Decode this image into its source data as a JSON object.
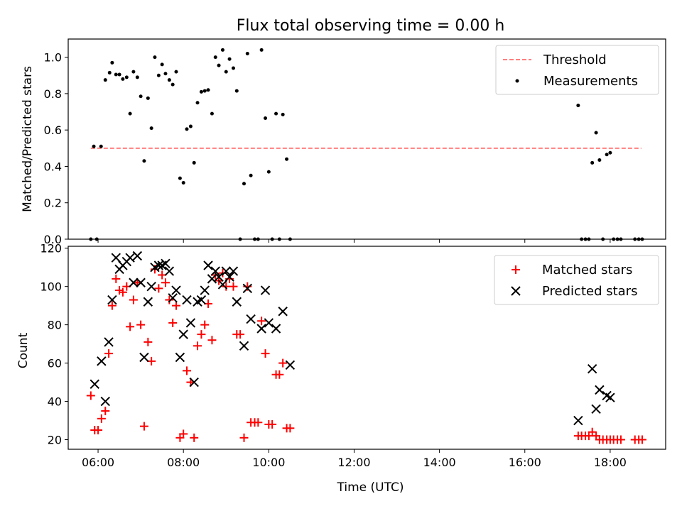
{
  "figure_title": "Flux total observing time = 0.00 h",
  "chart_data": [
    {
      "type": "scatter",
      "panel": "top",
      "title": "Flux total observing time = 0.00 h",
      "xlabel": "",
      "ylabel": "Matched/Predicted stars",
      "xlim": [
        5.3,
        19.3
      ],
      "ylim": [
        0.0,
        1.1
      ],
      "yticks": [
        0.0,
        0.2,
        0.4,
        0.6,
        0.8,
        1.0
      ],
      "ytick_labels": [
        "0.0",
        "0.2",
        "0.4",
        "0.6",
        "0.8",
        "1.0"
      ],
      "grid": false,
      "legend_placement": "top-right",
      "threshold": {
        "name": "Threshold",
        "value": 0.5,
        "x_range": [
          5.83,
          18.73
        ],
        "color": "#ff7f7f",
        "style": "dashed"
      },
      "series": [
        {
          "name": "Measurements",
          "color": "#000000",
          "marker": "dot",
          "points": [
            [
              5.83,
              0.0
            ],
            [
              5.9,
              0.51
            ],
            [
              5.97,
              0.0
            ],
            [
              6.07,
              0.51
            ],
            [
              6.17,
              0.875
            ],
            [
              6.27,
              0.915
            ],
            [
              6.33,
              0.97
            ],
            [
              6.42,
              0.905
            ],
            [
              6.5,
              0.905
            ],
            [
              6.58,
              0.88
            ],
            [
              6.67,
              0.89
            ],
            [
              6.75,
              0.69
            ],
            [
              6.83,
              0.92
            ],
            [
              6.92,
              0.89
            ],
            [
              7.0,
              0.785
            ],
            [
              7.08,
              0.43
            ],
            [
              7.17,
              0.775
            ],
            [
              7.25,
              0.61
            ],
            [
              7.33,
              1.0
            ],
            [
              7.42,
              0.9
            ],
            [
              7.5,
              0.96
            ],
            [
              7.58,
              0.91
            ],
            [
              7.67,
              0.875
            ],
            [
              7.75,
              0.85
            ],
            [
              7.83,
              0.92
            ],
            [
              7.92,
              0.335
            ],
            [
              8.0,
              0.31
            ],
            [
              8.08,
              0.605
            ],
            [
              8.17,
              0.62
            ],
            [
              8.25,
              0.42
            ],
            [
              8.33,
              0.75
            ],
            [
              8.42,
              0.81
            ],
            [
              8.5,
              0.815
            ],
            [
              8.58,
              0.82
            ],
            [
              8.67,
              0.69
            ],
            [
              8.75,
              1.0
            ],
            [
              8.83,
              0.955
            ],
            [
              8.92,
              1.04
            ],
            [
              9.0,
              0.92
            ],
            [
              9.08,
              0.99
            ],
            [
              9.17,
              0.94
            ],
            [
              9.25,
              0.815
            ],
            [
              9.33,
              0.0
            ],
            [
              9.42,
              0.305
            ],
            [
              9.5,
              1.02
            ],
            [
              9.58,
              0.35
            ],
            [
              9.67,
              0.0
            ],
            [
              9.75,
              0.0
            ],
            [
              9.83,
              1.04
            ],
            [
              9.92,
              0.665
            ],
            [
              10.0,
              0.37
            ],
            [
              10.08,
              0.0
            ],
            [
              10.17,
              0.69
            ],
            [
              10.25,
              0.0
            ],
            [
              10.33,
              0.685
            ],
            [
              10.42,
              0.44
            ],
            [
              10.5,
              0.0
            ],
            [
              17.25,
              0.735
            ],
            [
              17.33,
              0.0
            ],
            [
              17.42,
              0.0
            ],
            [
              17.5,
              0.0
            ],
            [
              17.58,
              0.42
            ],
            [
              17.67,
              0.585
            ],
            [
              17.75,
              0.435
            ],
            [
              17.83,
              0.0
            ],
            [
              17.92,
              0.465
            ],
            [
              18.0,
              0.475
            ],
            [
              18.08,
              0.0
            ],
            [
              18.17,
              0.0
            ],
            [
              18.25,
              0.0
            ],
            [
              18.58,
              0.0
            ],
            [
              18.67,
              0.0
            ],
            [
              18.75,
              0.0
            ]
          ]
        }
      ],
      "legend": [
        "Threshold",
        "Measurements"
      ]
    },
    {
      "type": "scatter",
      "panel": "bottom",
      "title": "",
      "xlabel": "Time (UTC)",
      "ylabel": "Count",
      "xlim": [
        5.3,
        19.3
      ],
      "ylim": [
        15,
        121
      ],
      "xticks": [
        6,
        8,
        10,
        12,
        14,
        16,
        18
      ],
      "xtick_labels": [
        "06:00",
        "08:00",
        "10:00",
        "12:00",
        "14:00",
        "16:00",
        "18:00"
      ],
      "yticks": [
        20,
        40,
        60,
        80,
        100,
        120
      ],
      "ytick_labels": [
        "20",
        "40",
        "60",
        "80",
        "100",
        "120"
      ],
      "grid": false,
      "legend_placement": "top-right",
      "series": [
        {
          "name": "Matched stars",
          "color": "#ff0000",
          "marker": "plus",
          "points": [
            [
              5.83,
              43
            ],
            [
              5.92,
              25
            ],
            [
              6.0,
              25
            ],
            [
              6.08,
              31
            ],
            [
              6.17,
              35
            ],
            [
              6.25,
              65
            ],
            [
              6.33,
              90
            ],
            [
              6.42,
              104
            ],
            [
              6.5,
              98
            ],
            [
              6.58,
              97
            ],
            [
              6.67,
              100
            ],
            [
              6.75,
              79
            ],
            [
              6.83,
              93
            ],
            [
              6.92,
              102
            ],
            [
              7.0,
              80
            ],
            [
              7.08,
              27
            ],
            [
              7.17,
              71
            ],
            [
              7.25,
              61
            ],
            [
              7.33,
              109
            ],
            [
              7.42,
              99
            ],
            [
              7.5,
              106
            ],
            [
              7.58,
              102
            ],
            [
              7.67,
              93
            ],
            [
              7.75,
              81
            ],
            [
              7.83,
              90
            ],
            [
              7.92,
              21
            ],
            [
              8.0,
              23
            ],
            [
              8.08,
              56
            ],
            [
              8.17,
              50
            ],
            [
              8.25,
              21
            ],
            [
              8.33,
              69
            ],
            [
              8.42,
              75
            ],
            [
              8.5,
              80
            ],
            [
              8.58,
              91
            ],
            [
              8.67,
              72
            ],
            [
              8.75,
              106
            ],
            [
              8.83,
              103
            ],
            [
              8.92,
              107
            ],
            [
              9.0,
              100
            ],
            [
              9.08,
              104
            ],
            [
              9.17,
              100
            ],
            [
              9.25,
              75
            ],
            [
              9.33,
              75
            ],
            [
              9.42,
              21
            ],
            [
              9.5,
              100
            ],
            [
              9.58,
              29
            ],
            [
              9.67,
              29
            ],
            [
              9.75,
              29
            ],
            [
              9.83,
              82
            ],
            [
              9.92,
              65
            ],
            [
              10.0,
              28
            ],
            [
              10.08,
              28
            ],
            [
              10.17,
              54
            ],
            [
              10.25,
              54
            ],
            [
              10.33,
              60
            ],
            [
              10.42,
              26
            ],
            [
              10.5,
              26
            ],
            [
              17.25,
              22
            ],
            [
              17.33,
              22
            ],
            [
              17.42,
              22
            ],
            [
              17.5,
              22
            ],
            [
              17.58,
              24
            ],
            [
              17.67,
              22
            ],
            [
              17.75,
              20
            ],
            [
              17.83,
              20
            ],
            [
              17.92,
              20
            ],
            [
              18.0,
              20
            ],
            [
              18.08,
              20
            ],
            [
              18.17,
              20
            ],
            [
              18.25,
              20
            ],
            [
              18.58,
              20
            ],
            [
              18.67,
              20
            ],
            [
              18.75,
              20
            ]
          ]
        },
        {
          "name": "Predicted stars",
          "color": "#000000",
          "marker": "x",
          "points": [
            [
              5.92,
              49
            ],
            [
              6.08,
              61
            ],
            [
              6.17,
              40
            ],
            [
              6.25,
              71
            ],
            [
              6.33,
              93
            ],
            [
              6.42,
              115
            ],
            [
              6.5,
              109
            ],
            [
              6.58,
              111
            ],
            [
              6.67,
              113
            ],
            [
              6.75,
              115
            ],
            [
              6.83,
              102
            ],
            [
              6.92,
              116
            ],
            [
              7.0,
              102
            ],
            [
              7.08,
              63
            ],
            [
              7.17,
              92
            ],
            [
              7.25,
              100
            ],
            [
              7.33,
              110
            ],
            [
              7.42,
              111
            ],
            [
              7.5,
              111
            ],
            [
              7.58,
              112
            ],
            [
              7.67,
              108
            ],
            [
              7.75,
              94
            ],
            [
              7.83,
              98
            ],
            [
              7.92,
              63
            ],
            [
              8.0,
              75
            ],
            [
              8.08,
              93
            ],
            [
              8.17,
              81
            ],
            [
              8.25,
              50
            ],
            [
              8.33,
              92
            ],
            [
              8.42,
              93
            ],
            [
              8.5,
              98
            ],
            [
              8.58,
              111
            ],
            [
              8.67,
              104
            ],
            [
              8.75,
              108
            ],
            [
              8.83,
              105
            ],
            [
              8.92,
              101
            ],
            [
              9.0,
              108
            ],
            [
              9.08,
              105
            ],
            [
              9.17,
              108
            ],
            [
              9.25,
              92
            ],
            [
              9.42,
              69
            ],
            [
              9.5,
              99
            ],
            [
              9.58,
              83
            ],
            [
              9.83,
              78
            ],
            [
              9.92,
              98
            ],
            [
              10.0,
              81
            ],
            [
              10.17,
              78
            ],
            [
              10.33,
              87
            ],
            [
              10.5,
              59
            ],
            [
              17.25,
              30
            ],
            [
              17.58,
              57
            ],
            [
              17.67,
              36
            ],
            [
              17.75,
              46
            ],
            [
              17.92,
              43
            ],
            [
              18.0,
              42
            ]
          ]
        }
      ],
      "legend": [
        "Matched stars",
        "Predicted stars"
      ]
    }
  ]
}
